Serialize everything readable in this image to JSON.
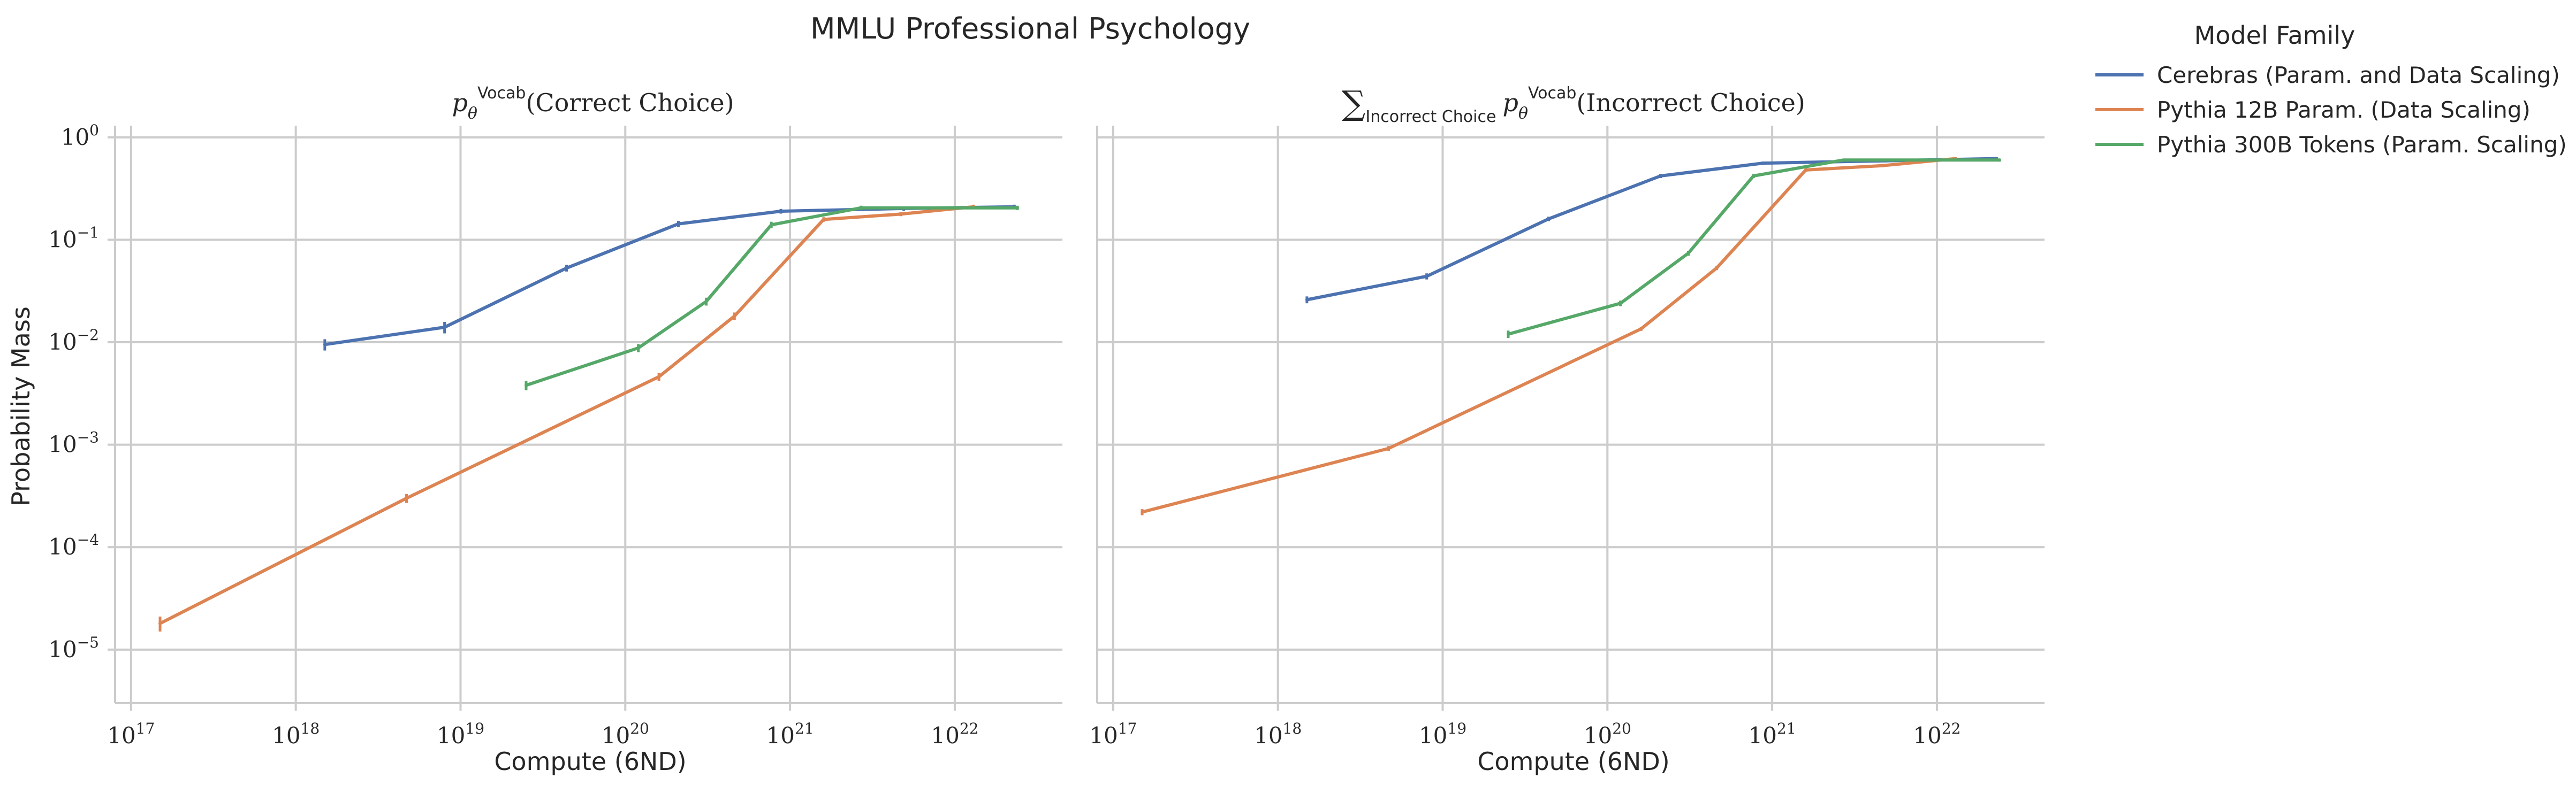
{
  "figure": {
    "suptitle": "MMLU Professional Psychology",
    "legend_title": "Model Family",
    "legend_placement": "right, outside plots"
  },
  "chart_data": [
    {
      "type": "line",
      "title": "p_θ^Vocab(Correct Choice)",
      "xlabel": "Compute (6ND)",
      "ylabel": "Probability Mass",
      "xscale": "log",
      "yscale": "log",
      "xlim": [
        8e+16,
        4.5e+22
      ],
      "ylim": [
        3e-06,
        1.3
      ],
      "xticks": [
        1e+17,
        1e+18,
        1e+19,
        1e+20,
        1e+21,
        1e+22
      ],
      "xtick_labels": [
        "10^17",
        "10^18",
        "10^19",
        "10^20",
        "10^21",
        "10^22"
      ],
      "yticks": [
        1e-05,
        0.0001,
        0.001,
        0.01,
        0.1,
        1
      ],
      "ytick_labels": [
        "10^−5",
        "10^−4",
        "10^−3",
        "10^−2",
        "10^−1",
        "10^0"
      ],
      "grid": true,
      "series": [
        {
          "name": "Cerebras (Param. and Data Scaling)",
          "color": "#4c72b0",
          "x": [
            1.5e+18,
            8e+18,
            4.4e+19,
            2.1e+20,
            8.8e+20,
            4.9e+21,
            2.3e+22
          ],
          "y": [
            0.0095,
            0.014,
            0.053,
            0.143,
            0.19,
            0.202,
            0.21
          ],
          "err": [
            0.0012,
            0.0018,
            0.004,
            0.01,
            0.01,
            0.01,
            0.01
          ]
        },
        {
          "name": "Pythia 12B Param. (Data Scaling)",
          "color": "#dd8452",
          "x": [
            1.5e+17,
            4.7e+18,
            1.6e+20,
            4.6e+20,
            1.6e+21,
            4.7e+21,
            1.3e+22
          ],
          "y": [
            1.8e-05,
            0.0003,
            0.0046,
            0.018,
            0.158,
            0.178,
            0.21
          ],
          "err": [
            3e-06,
            3e-05,
            0.0004,
            0.0015,
            0.008,
            0.008,
            0.01
          ]
        },
        {
          "name": "Pythia 300B Tokens (Param. Scaling)",
          "color": "#55a868",
          "x": [
            2.5e+19,
            1.2e+20,
            3.1e+20,
            7.7e+20,
            2.7e+21,
            2.4e+22
          ],
          "y": [
            0.0038,
            0.0088,
            0.025,
            0.14,
            0.205,
            0.205
          ],
          "err": [
            0.0004,
            0.0008,
            0.0022,
            0.01,
            0.01,
            0.01
          ]
        }
      ]
    },
    {
      "type": "line",
      "title": "∑_Incorrect Choice p_θ^Vocab(Incorrect Choice)",
      "xlabel": "Compute (6ND)",
      "ylabel": "",
      "xscale": "log",
      "yscale": "log",
      "xlim": [
        8e+16,
        4.5e+22
      ],
      "ylim": [
        3e-06,
        1.3
      ],
      "xticks": [
        1e+17,
        1e+18,
        1e+19,
        1e+20,
        1e+21,
        1e+22
      ],
      "xtick_labels": [
        "10^17",
        "10^18",
        "10^19",
        "10^20",
        "10^21",
        "10^22"
      ],
      "yticks": [
        1e-05,
        0.0001,
        0.001,
        0.01,
        0.1,
        1
      ],
      "grid": true,
      "series": [
        {
          "name": "Cerebras (Param. and Data Scaling)",
          "color": "#4c72b0",
          "x": [
            1.5e+18,
            8e+18,
            4.4e+19,
            2.1e+20,
            8.8e+20,
            4.9e+21,
            2.3e+22
          ],
          "y": [
            0.026,
            0.044,
            0.16,
            0.42,
            0.56,
            0.59,
            0.62
          ],
          "err": [
            0.002,
            0.003,
            0.008,
            0.02,
            0.02,
            0.02,
            0.02
          ]
        },
        {
          "name": "Pythia 12B Param. (Data Scaling)",
          "color": "#dd8452",
          "x": [
            1.5e+17,
            4.7e+18,
            1.6e+20,
            4.6e+20,
            1.6e+21,
            4.7e+21,
            1.3e+22
          ],
          "y": [
            0.00022,
            0.00092,
            0.0135,
            0.053,
            0.48,
            0.53,
            0.62
          ],
          "err": [
            1.5e-05,
            5e-05,
            0.0006,
            0.0025,
            0.02,
            0.02,
            0.02
          ]
        },
        {
          "name": "Pythia 300B Tokens (Param. Scaling)",
          "color": "#55a868",
          "x": [
            2.5e+19,
            1.2e+20,
            3.1e+20,
            7.7e+20,
            2.7e+21,
            2.4e+22
          ],
          "y": [
            0.012,
            0.024,
            0.074,
            0.42,
            0.6,
            0.6
          ],
          "err": [
            0.001,
            0.0015,
            0.004,
            0.02,
            0.02,
            0.02
          ]
        }
      ]
    }
  ]
}
